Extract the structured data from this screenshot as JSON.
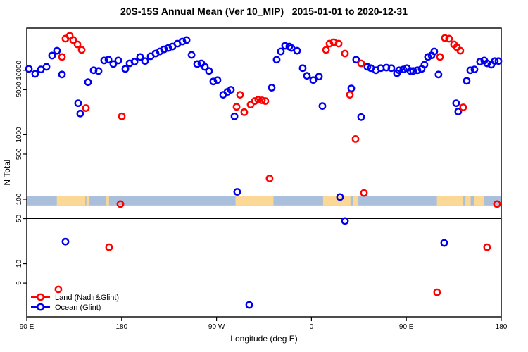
{
  "chart_data": {
    "type": "scatter",
    "title": "20S-15S Annual Mean (Ver 10_MIP)   2015-01-01 to 2020-12-31",
    "xlabel": "Longitude (deg E)",
    "ylabel": "N Total",
    "x_axis": {
      "span_deg": 450,
      "ticks": [
        {
          "deg": 0,
          "label": "90 E"
        },
        {
          "deg": 90,
          "label": "180"
        },
        {
          "deg": 180,
          "label": "90 W"
        },
        {
          "deg": 270,
          "label": "0"
        },
        {
          "deg": 360,
          "label": "90 E"
        },
        {
          "deg": 450,
          "label": "180"
        }
      ]
    },
    "y_axis": {
      "scale": "log",
      "ylim": [
        1.5,
        45000
      ],
      "ticks": [
        5,
        10,
        50,
        100,
        500,
        1000,
        5000,
        10000
      ]
    },
    "reference_line_n": 50,
    "map_band": {
      "n_range": [
        80,
        113
      ],
      "ocean_color": "#a9bfdb",
      "land_color": "#fbd895",
      "land_patches_deg": [
        [
          28.5,
          55.5
        ],
        [
          56.5,
          59.5
        ],
        [
          75.5,
          78
        ],
        [
          198,
          234
        ],
        [
          281,
          307
        ],
        [
          309.5,
          314.5
        ],
        [
          389,
          414
        ],
        [
          416,
          421
        ],
        [
          424,
          434
        ]
      ]
    },
    "legend": [
      {
        "name": "Land (Nadir&Glint)",
        "color": "#ff0000"
      },
      {
        "name": "Ocean (Glint)",
        "color": "#0000ee"
      }
    ],
    "series": [
      {
        "name": "Land (Nadir&Glint)",
        "color": "#ff0000",
        "points": [
          [
            30,
            4
          ],
          [
            33.4,
            16100
          ],
          [
            36.7,
            30900
          ],
          [
            40.7,
            34200
          ],
          [
            44.1,
            29400
          ],
          [
            48.1,
            25200
          ],
          [
            52.1,
            20700
          ],
          [
            56.1,
            2590
          ],
          [
            78.1,
            18
          ],
          [
            88.8,
            84
          ],
          [
            90.1,
            1930
          ],
          [
            199,
            2710
          ],
          [
            202.3,
            4170
          ],
          [
            206.3,
            2240
          ],
          [
            212.3,
            2930
          ],
          [
            216.3,
            3330
          ],
          [
            219.6,
            3500
          ],
          [
            223,
            3420
          ],
          [
            226.3,
            3330
          ],
          [
            230.3,
            210
          ],
          [
            283.8,
            20700
          ],
          [
            287.1,
            25900
          ],
          [
            291.1,
            27200
          ],
          [
            295.8,
            25900
          ],
          [
            301.8,
            18200
          ],
          [
            306.4,
            4170
          ],
          [
            311.8,
            860
          ],
          [
            317.1,
            12800
          ],
          [
            319.8,
            125
          ],
          [
            389.2,
            3.6
          ],
          [
            391.9,
            16100
          ],
          [
            396.5,
            31600
          ],
          [
            400.5,
            30900
          ],
          [
            405.2,
            25200
          ],
          [
            407.9,
            22800
          ],
          [
            411.2,
            20100
          ],
          [
            413.9,
            2660
          ],
          [
            436.6,
            18
          ],
          [
            446,
            84
          ]
        ]
      },
      {
        "name": "Ocean (Glint)",
        "color": "#0000ee",
        "points": [
          [
            2,
            10500
          ],
          [
            8,
            8800
          ],
          [
            13.4,
            10300
          ],
          [
            18.7,
            11300
          ],
          [
            24,
            16900
          ],
          [
            28.7,
            20100
          ],
          [
            33.4,
            8600
          ],
          [
            36.7,
            22
          ],
          [
            48.7,
            3080
          ],
          [
            50.7,
            2130
          ],
          [
            58.1,
            6540
          ],
          [
            63.4,
            10000
          ],
          [
            68.1,
            9750
          ],
          [
            73.4,
            14200
          ],
          [
            77.5,
            14600
          ],
          [
            82.1,
            12500
          ],
          [
            86.8,
            14200
          ],
          [
            93.5,
            10500
          ],
          [
            97.5,
            12800
          ],
          [
            102.2,
            13600
          ],
          [
            107.5,
            16100
          ],
          [
            112.2,
            13900
          ],
          [
            117.5,
            16500
          ],
          [
            122.2,
            18200
          ],
          [
            126.2,
            19600
          ],
          [
            130.2,
            21100
          ],
          [
            134.2,
            22200
          ],
          [
            138.2,
            23400
          ],
          [
            142.9,
            25900
          ],
          [
            147.6,
            27900
          ],
          [
            151.6,
            29400
          ],
          [
            156.3,
            17300
          ],
          [
            161.6,
            12500
          ],
          [
            165.6,
            12800
          ],
          [
            168.9,
            11300
          ],
          [
            172.9,
            9750
          ],
          [
            176.9,
            6700
          ],
          [
            180.9,
            7050
          ],
          [
            186.3,
            4170
          ],
          [
            190.3,
            4620
          ],
          [
            193.6,
            4990
          ],
          [
            197,
            1930
          ],
          [
            199.6,
            130
          ],
          [
            211,
            2.3
          ],
          [
            232.3,
            5370
          ],
          [
            237,
            14600
          ],
          [
            241,
            19600
          ],
          [
            245,
            24000
          ],
          [
            249,
            23400
          ],
          [
            251,
            22200
          ],
          [
            256.4,
            20100
          ],
          [
            261.7,
            10800
          ],
          [
            265.7,
            8200
          ],
          [
            271.7,
            7050
          ],
          [
            277.1,
            8000
          ],
          [
            280.4,
            2790
          ],
          [
            297.1,
            108
          ],
          [
            301.8,
            46
          ],
          [
            307.8,
            5230
          ],
          [
            312.4,
            14600
          ],
          [
            317.1,
            1880
          ],
          [
            323.1,
            11300
          ],
          [
            326.4,
            10800
          ],
          [
            331.1,
            10000
          ],
          [
            335.8,
            10800
          ],
          [
            341.1,
            11000
          ],
          [
            345.8,
            10800
          ],
          [
            351.1,
            9000
          ],
          [
            353.1,
            10000
          ],
          [
            357.1,
            10300
          ],
          [
            360.5,
            10800
          ],
          [
            363.8,
            9750
          ],
          [
            366.5,
            9750
          ],
          [
            370.5,
            10000
          ],
          [
            374.5,
            10500
          ],
          [
            377.2,
            12200
          ],
          [
            380.5,
            16100
          ],
          [
            383.9,
            17000
          ],
          [
            386.5,
            19600
          ],
          [
            390.5,
            8600
          ],
          [
            395.9,
            21
          ],
          [
            407.2,
            3080
          ],
          [
            409.2,
            2290
          ],
          [
            417.2,
            6850
          ],
          [
            420.6,
            10000
          ],
          [
            424.6,
            10300
          ],
          [
            429.9,
            13600
          ],
          [
            433.9,
            14200
          ],
          [
            436.6,
            12800
          ],
          [
            440.6,
            12200
          ],
          [
            443.9,
            13900
          ],
          [
            447.3,
            13900
          ]
        ]
      }
    ]
  }
}
